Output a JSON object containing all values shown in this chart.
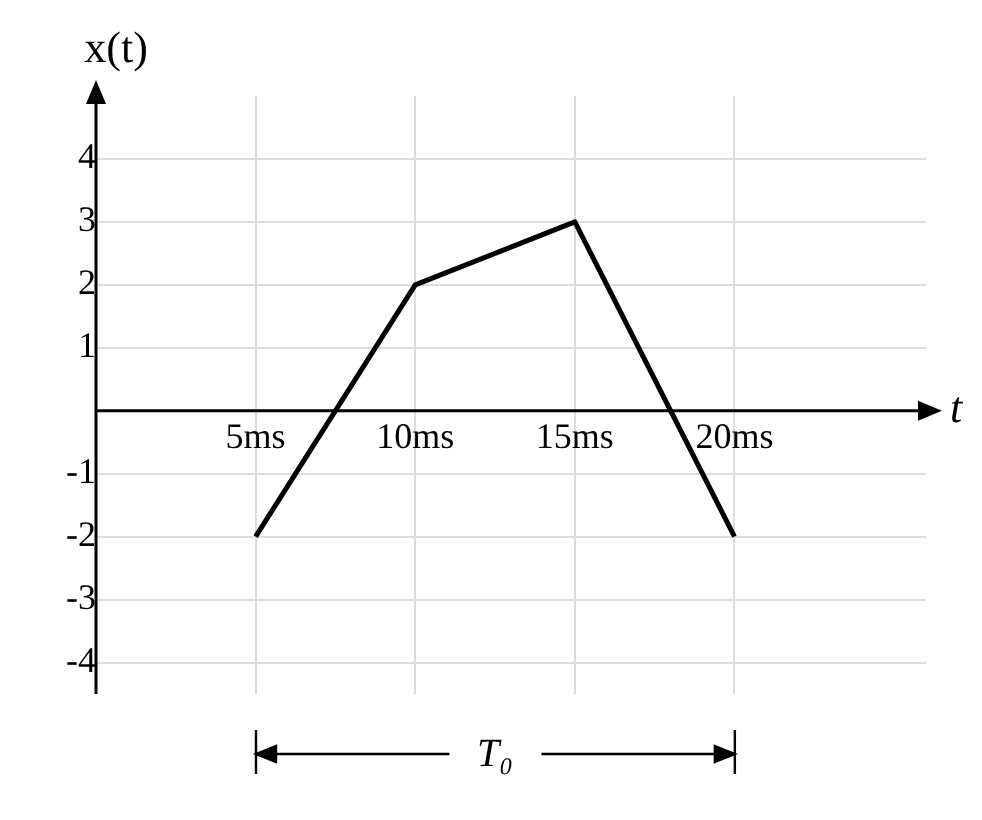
{
  "chart_data": {
    "type": "line",
    "xlabel": "t",
    "ylabel": "x(t)",
    "x": [
      5,
      10,
      15,
      20
    ],
    "series": [
      {
        "color": "#000000",
        "values": [
          -2,
          2,
          3,
          -2
        ]
      }
    ],
    "xlim": [
      0,
      26
    ],
    "ylim": [
      -4.5,
      5
    ],
    "xticks": [
      {
        "value": 5,
        "label": "5ms"
      },
      {
        "value": 10,
        "label": "10ms"
      },
      {
        "value": 15,
        "label": "15ms"
      },
      {
        "value": 20,
        "label": "20ms"
      }
    ],
    "yticks": [
      -4,
      -3,
      -2,
      -1,
      1,
      2,
      3,
      4
    ],
    "grid": true,
    "legend": false,
    "marker": "none",
    "line_style": "solid",
    "annotations": [
      "T₀"
    ]
  }
}
